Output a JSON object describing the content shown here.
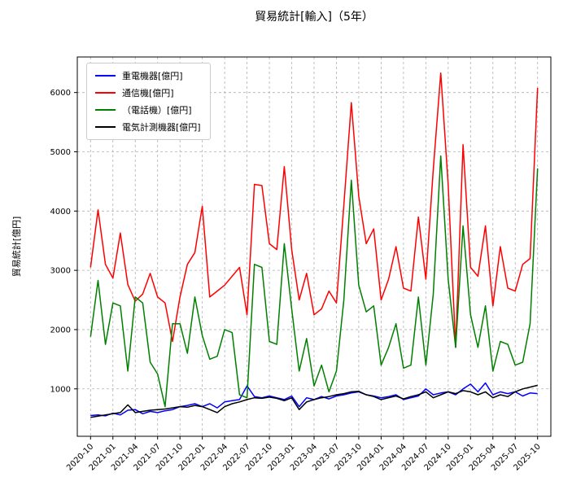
{
  "chart_data": {
    "type": "line",
    "title": "貿易統計[輸入]（5年）",
    "xlabel": "",
    "ylabel": "貿易統計[億円]",
    "ylim": [
      200,
      6600
    ],
    "yticks": [
      1000,
      2000,
      3000,
      4000,
      5000,
      6000
    ],
    "grid": true,
    "grid_style": "dashed",
    "legend_position": "upper left",
    "x": [
      "2020-10",
      "2020-11",
      "2020-12",
      "2021-01",
      "2021-02",
      "2021-03",
      "2021-04",
      "2021-05",
      "2021-06",
      "2021-07",
      "2021-08",
      "2021-09",
      "2021-10",
      "2021-11",
      "2021-12",
      "2022-01",
      "2022-02",
      "2022-03",
      "2022-04",
      "2022-05",
      "2022-06",
      "2022-07",
      "2022-08",
      "2022-09",
      "2022-10",
      "2022-11",
      "2022-12",
      "2023-01",
      "2023-02",
      "2023-03",
      "2023-04",
      "2023-05",
      "2023-06",
      "2023-07",
      "2023-08",
      "2023-09",
      "2023-10",
      "2023-11",
      "2023-12",
      "2024-01",
      "2024-02",
      "2024-03",
      "2024-04",
      "2024-05",
      "2024-06",
      "2024-07",
      "2024-08",
      "2024-09",
      "2024-10",
      "2024-11",
      "2024-12",
      "2025-01",
      "2025-02",
      "2025-03",
      "2025-04",
      "2025-05",
      "2025-06",
      "2025-07",
      "2025-08",
      "2025-09",
      "2025-10"
    ],
    "xtick_labels": [
      "2020-10",
      "2021-01",
      "2021-04",
      "2021-07",
      "2021-10",
      "2022-01",
      "2022-04",
      "2022-07",
      "2022-10",
      "2023-01",
      "2023-04",
      "2023-07",
      "2023-10",
      "2024-01",
      "2024-04",
      "2024-07",
      "2024-10",
      "2025-01",
      "2025-04",
      "2025-07",
      "2025-10"
    ],
    "series": [
      {
        "name": "重電機器[億円]",
        "color": "#0000ff",
        "values": [
          550,
          560,
          545,
          590,
          560,
          640,
          650,
          580,
          620,
          600,
          630,
          650,
          700,
          720,
          750,
          700,
          750,
          680,
          780,
          800,
          820,
          1050,
          870,
          850,
          880,
          850,
          820,
          880,
          700,
          850,
          820,
          870,
          830,
          880,
          900,
          930,
          950,
          900,
          880,
          850,
          870,
          900,
          820,
          850,
          880,
          1000,
          900,
          930,
          950,
          900,
          1000,
          1080,
          950,
          1100,
          900,
          950,
          920,
          950,
          880,
          930,
          920
        ]
      },
      {
        "name": "通信機[億円]",
        "color": "#ff0000",
        "values": [
          3050,
          4020,
          3100,
          2870,
          3630,
          2760,
          2480,
          2600,
          2950,
          2550,
          2450,
          1800,
          2550,
          3100,
          3300,
          4080,
          2550,
          2650,
          2750,
          2900,
          3050,
          2250,
          4450,
          4430,
          3450,
          3350,
          4750,
          3350,
          2500,
          2950,
          2250,
          2350,
          2650,
          2450,
          4100,
          5830,
          4250,
          3450,
          3700,
          2500,
          2850,
          3400,
          2700,
          2650,
          3900,
          2850,
          4700,
          6330,
          4450,
          1700,
          5120,
          3050,
          2900,
          3750,
          2400,
          3400,
          2700,
          2650,
          3100,
          3200,
          6080
        ]
      },
      {
        "name": "（電話機）[億円]",
        "color": "#008000",
        "values": [
          1880,
          2830,
          1750,
          2450,
          2400,
          1300,
          2550,
          2450,
          1450,
          1250,
          700,
          2100,
          2100,
          1600,
          2550,
          1900,
          1500,
          1550,
          2000,
          1950,
          900,
          850,
          3100,
          3050,
          1800,
          1750,
          3450,
          2350,
          1300,
          1850,
          1050,
          1400,
          950,
          1300,
          2500,
          4520,
          2750,
          2300,
          2400,
          1400,
          1700,
          2100,
          1350,
          1400,
          2550,
          1400,
          2600,
          4930,
          2850,
          1700,
          3750,
          2250,
          1700,
          2400,
          1300,
          1800,
          1750,
          1400,
          1450,
          2100,
          4720
        ]
      },
      {
        "name": "電気計測機器[億円]",
        "color": "#000000",
        "values": [
          520,
          540,
          560,
          580,
          600,
          730,
          600,
          620,
          640,
          650,
          660,
          680,
          700,
          690,
          720,
          700,
          650,
          600,
          700,
          750,
          780,
          820,
          850,
          840,
          860,
          840,
          800,
          850,
          650,
          780,
          820,
          850,
          870,
          900,
          920,
          950,
          960,
          900,
          870,
          820,
          850,
          880,
          830,
          870,
          900,
          950,
          850,
          900,
          950,
          920,
          970,
          950,
          900,
          950,
          850,
          900,
          870,
          950,
          1000,
          1030,
          1060
        ]
      }
    ]
  }
}
